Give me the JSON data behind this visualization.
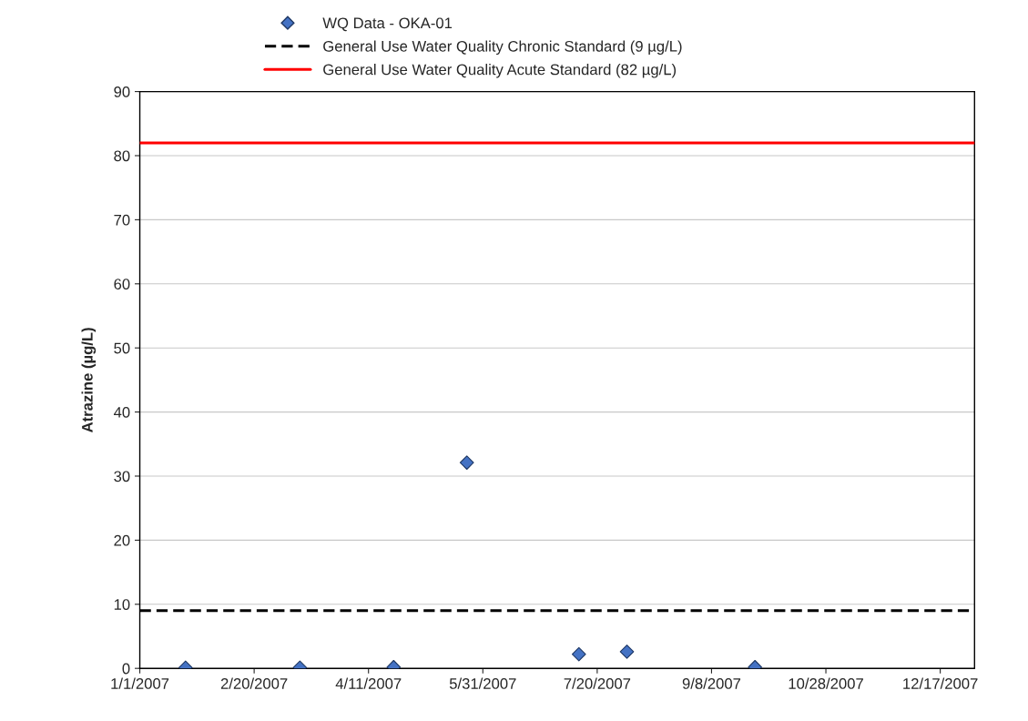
{
  "chart_data": {
    "type": "scatter",
    "ylabel": "Atrazine (µg/L)",
    "x": [
      "2007-01-21",
      "2007-03-12",
      "2007-04-22",
      "2007-05-24",
      "2007-07-12",
      "2007-08-02",
      "2007-09-27"
    ],
    "series": [
      {
        "name": "WQ Data - OKA-01",
        "color": "#4472c4",
        "values": [
          0.1,
          0.1,
          0.2,
          32.1,
          2.2,
          2.6,
          0.2
        ]
      }
    ],
    "marker": "diamond",
    "ref_lines": [
      {
        "axis": "y",
        "value": 9,
        "label": "General Use Water Quality Chronic Standard (9 µg/L)",
        "color": "#000000",
        "line_style": "dashed"
      },
      {
        "axis": "y",
        "value": 82,
        "label": "General Use Water Quality Acute Standard (82 µg/L)",
        "color": "#ff0000",
        "line_style": "solid"
      }
    ],
    "xlim": [
      "2007-01-01",
      "2008-01-01"
    ],
    "xticks": [
      {
        "value": "2007-01-01",
        "label": "1/1/2007"
      },
      {
        "value": "2007-02-20",
        "label": "2/20/2007"
      },
      {
        "value": "2007-04-11",
        "label": "4/11/2007"
      },
      {
        "value": "2007-05-31",
        "label": "5/31/2007"
      },
      {
        "value": "2007-07-20",
        "label": "7/20/2007"
      },
      {
        "value": "2007-09-08",
        "label": "9/8/2007"
      },
      {
        "value": "2007-10-28",
        "label": "10/28/2007"
      },
      {
        "value": "2007-12-17",
        "label": "12/17/2007"
      }
    ],
    "ylim": [
      0,
      90
    ],
    "yticks": [
      0,
      10,
      20,
      30,
      40,
      50,
      60,
      70,
      80,
      90
    ],
    "grid": "y",
    "legend": "top"
  }
}
